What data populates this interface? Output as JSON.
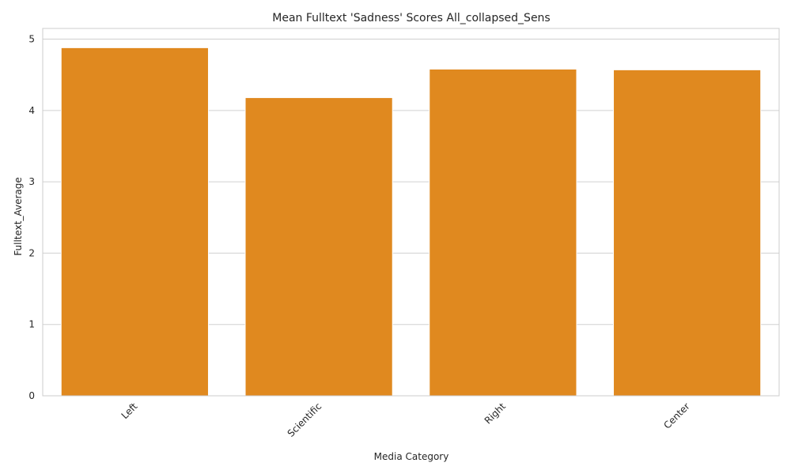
{
  "chart_data": {
    "type": "bar",
    "title": "Mean Fulltext 'Sadness' Scores All_collapsed_Sens",
    "xlabel": "Media Category",
    "ylabel": "Fulltext_Average",
    "categories": [
      "Left",
      "Scientific",
      "Right",
      "Center"
    ],
    "values": [
      4.88,
      4.18,
      4.58,
      4.57
    ],
    "ylim": [
      0,
      5.15
    ],
    "yticks": [
      "0",
      "1",
      "2",
      "3",
      "4",
      "5"
    ],
    "bar_color": "#e0891f",
    "grid": true,
    "legend": "none"
  }
}
